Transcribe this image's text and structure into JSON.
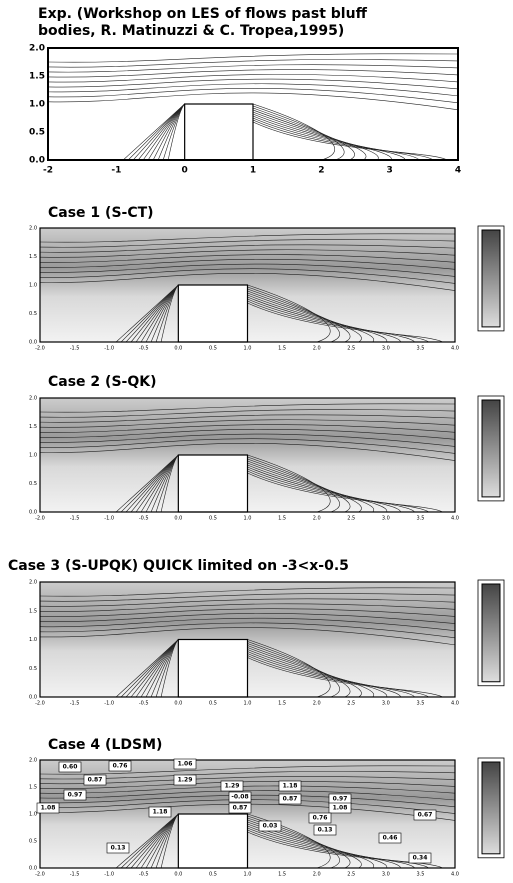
{
  "panels": [
    {
      "title": [
        "Exp. (Workshop on LES of flows past bluff",
        "bodies, R. Matinuzzi & C. Tropea,1995)"
      ],
      "xticks": [
        "-2",
        "-1",
        "0",
        "1",
        "2",
        "3",
        "4"
      ],
      "yticks": [
        "0.0",
        "0.5",
        "1.0",
        "1.5",
        "2.0"
      ]
    },
    {
      "title": [
        "Case 1 (S-CT)"
      ],
      "xticks": [
        "-2.0",
        "-1.5",
        "-1.0",
        "-0.5",
        "0.0",
        "0.5",
        "1.0",
        "1.5",
        "2.0",
        "2.5",
        "3.0",
        "3.5",
        "4.0"
      ],
      "yticks": [
        "0.0",
        "0.5",
        "1.0",
        "1.5",
        "2.0"
      ]
    },
    {
      "title": [
        "Case 2 (S-QK)"
      ],
      "xticks": [
        "-2.0",
        "-1.5",
        "-1.0",
        "-0.5",
        "0.0",
        "0.5",
        "1.0",
        "1.5",
        "2.0",
        "2.5",
        "3.0",
        "3.5",
        "4.0"
      ],
      "yticks": [
        "0.0",
        "0.5",
        "1.0",
        "1.5",
        "2.0"
      ]
    },
    {
      "title": [
        "Case 3 (S-UPQK)  QUICK limited on -3<x-0.5"
      ],
      "xticks": [
        "-2.0",
        "-1.5",
        "-1.0",
        "-0.5",
        "0.0",
        "0.5",
        "1.0",
        "1.5",
        "2.0",
        "2.5",
        "3.0",
        "3.5",
        "4.0"
      ],
      "yticks": [
        "0.0",
        "0.5",
        "1.0",
        "1.5",
        "2.0"
      ]
    },
    {
      "title": [
        "Case 4 (LDSM)"
      ],
      "xticks": [
        "-2.0",
        "-1.5",
        "-1.0",
        "-0.5",
        "0.0",
        "0.5",
        "1.0",
        "1.5",
        "2.0",
        "2.5",
        "3.0",
        "3.5",
        "4.0"
      ],
      "yticks": [
        "0.0",
        "0.5",
        "1.0",
        "1.5",
        "2.0"
      ],
      "contour_labels": [
        "0.60",
        "0.76",
        "0.87",
        "0.97",
        "1.08",
        "1.18",
        "1.06",
        "1.29",
        "1.29",
        "1.18",
        "0.97",
        "0.87",
        "-0.08",
        "0.87",
        "1.08",
        "0.76",
        "0.03",
        "0.13",
        "0.46",
        "0.13",
        "0.67",
        "0.34"
      ]
    }
  ]
}
